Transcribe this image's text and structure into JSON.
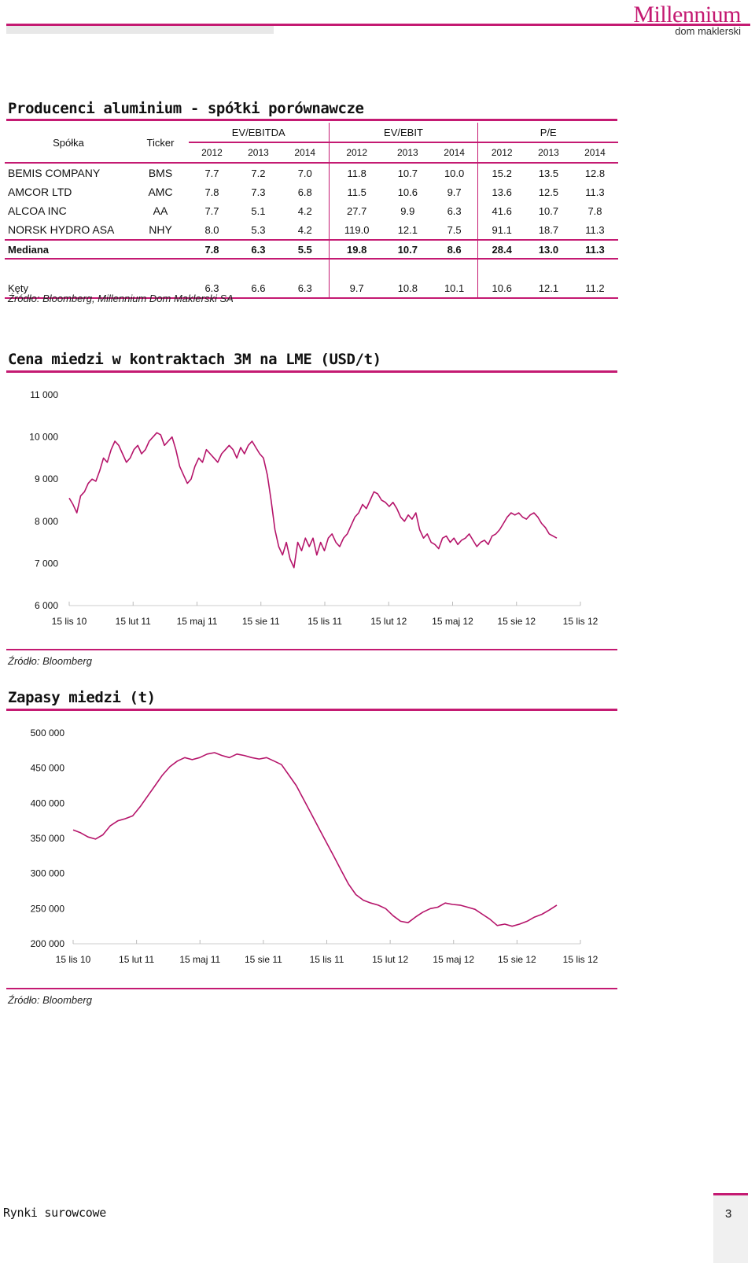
{
  "brand": {
    "name": "Millennium",
    "sub": "dom maklerski",
    "accent": "#c41a72"
  },
  "table": {
    "title": "Producenci aluminium - spółki porównawcze",
    "col_company": "Spółka",
    "col_ticker": "Ticker",
    "groups": [
      "EV/EBITDA",
      "EV/EBIT",
      "P/E"
    ],
    "years": [
      "2012",
      "2013",
      "2014",
      "2012",
      "2013",
      "2014",
      "2012",
      "2013",
      "2014"
    ],
    "rows": [
      {
        "name": "BEMIS COMPANY",
        "ticker": "BMS",
        "values": [
          "7.7",
          "7.2",
          "7.0",
          "11.8",
          "10.7",
          "10.0",
          "15.2",
          "13.5",
          "12.8"
        ]
      },
      {
        "name": "AMCOR LTD",
        "ticker": "AMC",
        "values": [
          "7.8",
          "7.3",
          "6.8",
          "11.5",
          "10.6",
          "9.7",
          "13.6",
          "12.5",
          "11.3"
        ]
      },
      {
        "name": "ALCOA INC",
        "ticker": "AA",
        "values": [
          "7.7",
          "5.1",
          "4.2",
          "27.7",
          "9.9",
          "6.3",
          "41.6",
          "10.7",
          "7.8"
        ]
      },
      {
        "name": "NORSK HYDRO ASA",
        "ticker": "NHY",
        "values": [
          "8.0",
          "5.3",
          "4.2",
          "119.0",
          "12.1",
          "7.5",
          "91.1",
          "18.7",
          "11.3"
        ]
      }
    ],
    "median": {
      "name": "Mediana",
      "values": [
        "7.8",
        "6.3",
        "5.5",
        "19.8",
        "10.7",
        "8.6",
        "28.4",
        "13.0",
        "11.3"
      ]
    },
    "kety": {
      "name": "Kęty",
      "values": [
        "6.3",
        "6.6",
        "6.3",
        "9.7",
        "10.8",
        "10.1",
        "10.6",
        "12.1",
        "11.2"
      ]
    },
    "source": "Źródło: Bloomberg, Millennium Dom Maklerski SA"
  },
  "chart_data": [
    {
      "type": "line",
      "title": "Cena miedzi w kontraktach 3M na LME (USD/t)",
      "yticks": [
        "11 000",
        "10 000",
        "9 000",
        "8 000",
        "7 000",
        "6 000"
      ],
      "ylim": [
        6000,
        11000
      ],
      "xticks": [
        "15 lis 10",
        "15 lut 11",
        "15 maj 11",
        "15 sie 11",
        "15 lis 11",
        "15 lut 12",
        "15 maj 12",
        "15 sie 12",
        "15 lis 12"
      ],
      "color": "#b5146a",
      "series": [
        {
          "name": "Cena miedzi",
          "values": [
            8550,
            8400,
            8200,
            8600,
            8700,
            8900,
            9000,
            8950,
            9200,
            9500,
            9400,
            9700,
            9900,
            9800,
            9600,
            9400,
            9500,
            9700,
            9800,
            9600,
            9700,
            9900,
            10000,
            10100,
            10050,
            9800,
            9900,
            10000,
            9700,
            9300,
            9100,
            8900,
            9000,
            9300,
            9500,
            9400,
            9700,
            9600,
            9500,
            9400,
            9600,
            9700,
            9800,
            9700,
            9500,
            9750,
            9600,
            9800,
            9900,
            9750,
            9600,
            9500,
            9100,
            8500,
            7800,
            7400,
            7200,
            7500,
            7100,
            6900,
            7500,
            7300,
            7600,
            7400,
            7600,
            7200,
            7500,
            7300,
            7600,
            7700,
            7500,
            7400,
            7600,
            7700,
            7900,
            8100,
            8200,
            8400,
            8300,
            8500,
            8700,
            8650,
            8500,
            8450,
            8350,
            8450,
            8300,
            8100,
            8000,
            8150,
            8050,
            8200,
            7800,
            7600,
            7700,
            7500,
            7450,
            7350,
            7600,
            7650,
            7500,
            7600,
            7450,
            7550,
            7600,
            7700,
            7550,
            7400,
            7500,
            7550,
            7450,
            7650,
            7700,
            7800,
            7950,
            8100,
            8200,
            8150,
            8200,
            8100,
            8050,
            8150,
            8200,
            8100,
            7950,
            7850,
            7700,
            7650,
            7600
          ]
        }
      ]
    },
    {
      "type": "line",
      "title": "Zapasy miedzi (t)",
      "yticks": [
        "500 000",
        "450 000",
        "400 000",
        "350 000",
        "300 000",
        "250 000",
        "200 000"
      ],
      "ylim": [
        200000,
        500000
      ],
      "xticks": [
        "15 lis 10",
        "15 lut 11",
        "15 maj 11",
        "15 sie 11",
        "15 lis 11",
        "15 lut 12",
        "15 maj 12",
        "15 sie 12",
        "15 lis 12"
      ],
      "color": "#b5146a",
      "series": [
        {
          "name": "Zapasy miedzi",
          "values": [
            362000,
            358000,
            352000,
            349000,
            355000,
            368000,
            375000,
            378000,
            382000,
            395000,
            410000,
            425000,
            440000,
            452000,
            460000,
            465000,
            462000,
            465000,
            470000,
            472000,
            468000,
            465000,
            470000,
            468000,
            465000,
            463000,
            465000,
            460000,
            455000,
            440000,
            425000,
            405000,
            385000,
            365000,
            345000,
            325000,
            305000,
            285000,
            270000,
            262000,
            258000,
            255000,
            250000,
            240000,
            232000,
            230000,
            238000,
            245000,
            250000,
            252000,
            258000,
            256000,
            255000,
            252000,
            249000,
            242000,
            235000,
            226000,
            228000,
            225000,
            228000,
            232000,
            238000,
            242000,
            248000,
            255000
          ]
        }
      ]
    }
  ],
  "chart_sources": [
    "Źródło: Bloomberg",
    "Źródło: Bloomberg"
  ],
  "footer": {
    "section": "Rynki surowcowe",
    "page": "3"
  }
}
